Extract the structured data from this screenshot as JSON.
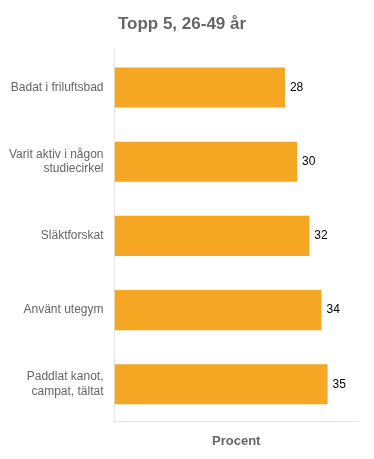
{
  "chart_data": {
    "type": "bar",
    "orientation": "horizontal",
    "title": "Topp 5, 26-49 år",
    "xlabel": "Procent",
    "categories": [
      "Paddlat kanot,\ncampat, tältat",
      "Använt utegym",
      "Släktforskat",
      "Varit aktiv i någon\nstudiecirkel",
      "Badat i friluftsbad"
    ],
    "values": [
      35,
      34,
      32,
      30,
      28
    ],
    "color": "#F5A623",
    "xlim": [
      0,
      40
    ],
    "data_labels": true,
    "grid": false,
    "tick_labels": "y"
  }
}
